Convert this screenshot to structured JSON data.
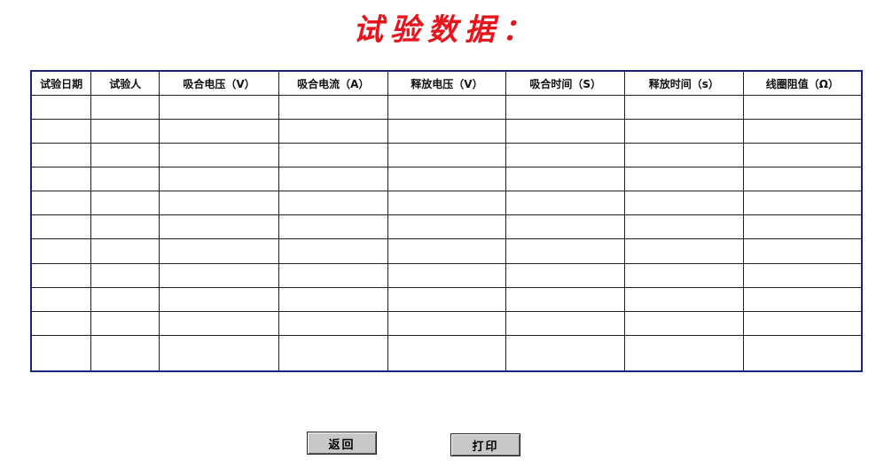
{
  "title": "试验数据：",
  "table": {
    "headers": [
      "试验日期",
      "试验人",
      "吸合电压（V）",
      "吸合电流（A）",
      "释放电压（V）",
      "吸合时间（S）",
      "释放时间（s）",
      "线圈阻值（Ω）"
    ],
    "row_count": 11
  },
  "buttons": {
    "back": "返回",
    "print": "打印"
  }
}
